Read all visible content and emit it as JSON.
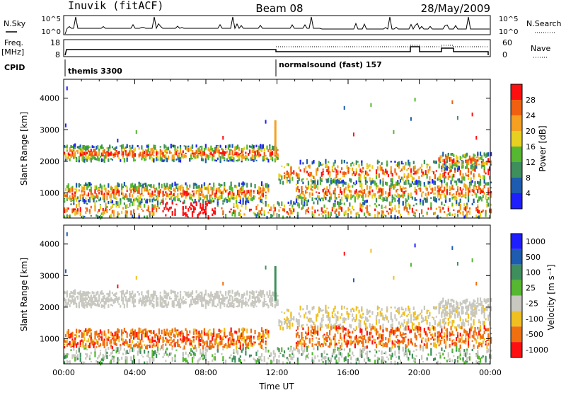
{
  "header": {
    "station": "Inuvik (fitACF)",
    "beam": "Beam 08",
    "date": "28/May/2009"
  },
  "strip": {
    "nsky_label": "N.Sky",
    "nsearch_label": "N.Search",
    "freq_label": "Freq.",
    "freq_unit": "[MHz]",
    "nave_label": "Nave",
    "cpid_label": "CPID",
    "cpid_1": "themis 3300",
    "cpid_2": "normalsound (fast) 157",
    "left_ticks_noise": [
      "10^5",
      "10^0"
    ],
    "right_ticks_noise": [
      "10^5",
      "10^0"
    ],
    "left_ticks_freq": [
      "18",
      "8"
    ],
    "right_ticks_nave": [
      "60",
      "0"
    ]
  },
  "colors": {
    "power": [
      "#1e1eff",
      "#1d5cb0",
      "#3f8f5c",
      "#55b830",
      "#e8d020",
      "#f5a020",
      "#f06010",
      "#ff1010"
    ],
    "velocity": [
      "#1e1eff",
      "#1d5cb0",
      "#3f8f5c",
      "#55b830",
      "#c8c8c0",
      "#f0c020",
      "#f07010",
      "#ff1010"
    ]
  },
  "chart_data": [
    {
      "type": "heatmap",
      "panel": "power",
      "xlabel": "",
      "ylabel": "Slant Range [km]",
      "x_ticks": [
        "00:00",
        "04:00",
        "08:00",
        "12:00",
        "16:00",
        "20:00",
        "00:00"
      ],
      "y_ticks": [
        1000,
        2000,
        3000,
        4000
      ],
      "ylim": [
        200,
        4600
      ],
      "colorbar": {
        "label": "Power [dB]",
        "ticks": [
          "28",
          "24",
          "20",
          "16",
          "12",
          "8",
          "4"
        ]
      }
    },
    {
      "type": "heatmap",
      "panel": "velocity",
      "xlabel": "Time UT",
      "ylabel": "Slant Range [km]",
      "x_ticks": [
        "00:00",
        "04:00",
        "08:00",
        "12:00",
        "16:00",
        "20:00",
        "00:00"
      ],
      "y_ticks": [
        1000,
        2000,
        3000,
        4000
      ],
      "ylim": [
        200,
        4600
      ],
      "colorbar": {
        "label": "Velocity [m s⁻¹]",
        "ticks": [
          "1000",
          "500",
          "100",
          "25",
          "-25",
          "-100",
          "-500",
          "-1000"
        ]
      }
    }
  ]
}
